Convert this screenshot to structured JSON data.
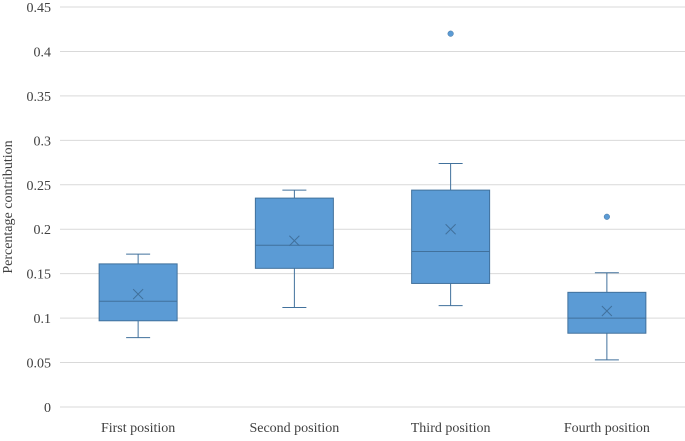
{
  "chart_data": {
    "type": "box",
    "title": "",
    "xlabel": "",
    "ylabel": "Percentage contribution",
    "ylim": [
      0,
      0.45
    ],
    "yticks": [
      "0",
      "0.05",
      "0.1",
      "0.15",
      "0.2",
      "0.25",
      "0.3",
      "0.35",
      "0.4",
      "0.45"
    ],
    "grid": true,
    "legend": "none",
    "colors": {
      "fill": "#5B9BD5",
      "stroke": "#41719C",
      "grid": "#D9D9D9"
    },
    "categories": [
      "First position",
      "Second position",
      "Third position",
      "Fourth position"
    ],
    "boxes": [
      {
        "min": 0.078,
        "q1": 0.097,
        "median": 0.119,
        "q3": 0.161,
        "max": 0.172,
        "mean": 0.127,
        "outliers": []
      },
      {
        "min": 0.112,
        "q1": 0.156,
        "median": 0.182,
        "q3": 0.235,
        "max": 0.244,
        "mean": 0.187,
        "outliers": []
      },
      {
        "min": 0.114,
        "q1": 0.139,
        "median": 0.175,
        "q3": 0.244,
        "max": 0.274,
        "mean": 0.2,
        "outliers": [
          0.42
        ]
      },
      {
        "min": 0.053,
        "q1": 0.083,
        "median": 0.1,
        "q3": 0.129,
        "max": 0.151,
        "mean": 0.108,
        "outliers": [
          0.214
        ]
      }
    ]
  }
}
